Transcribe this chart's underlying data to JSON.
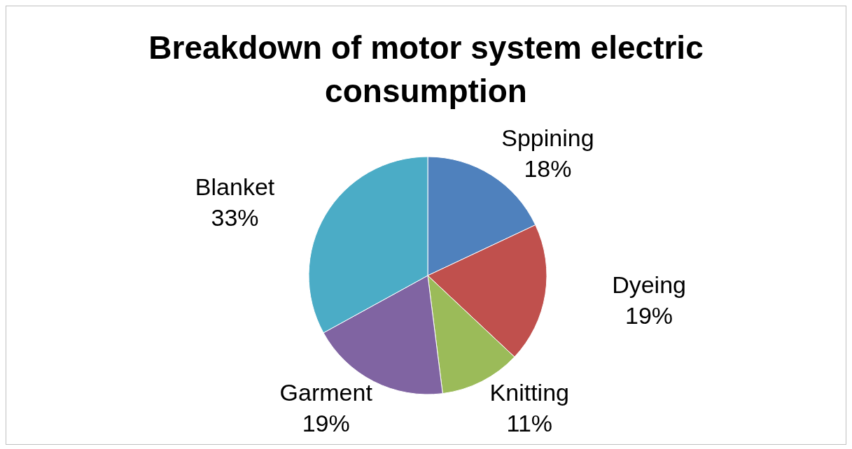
{
  "chart_data": {
    "type": "pie",
    "title": "Breakdown of motor system electric consumption",
    "categories": [
      "Sppining",
      "Dyeing",
      "Knitting",
      "Garment",
      "Blanket"
    ],
    "values": [
      18,
      19,
      11,
      19,
      33
    ],
    "colors": [
      "#4f81bd",
      "#c0504d",
      "#9bbb59",
      "#8064a2",
      "#4bacc6"
    ],
    "value_labels": [
      "18%",
      "19%",
      "11%",
      "19%",
      "33%"
    ],
    "legend": false
  }
}
